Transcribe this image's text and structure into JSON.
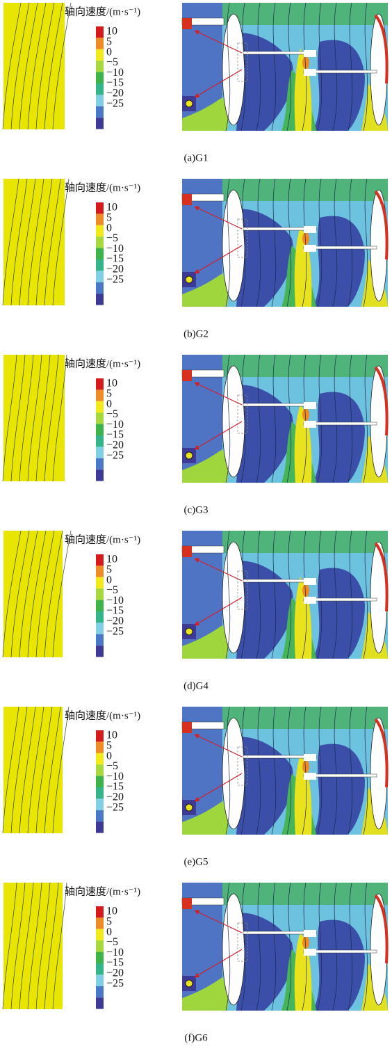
{
  "panels": [
    {
      "caption": "(a)G1",
      "colorbar_title": "轴向速度/(m·s⁻¹)",
      "colorbar_ticks": [
        "10",
        "5",
        "0",
        "−5",
        "−10",
        "−15",
        "−20",
        "−25"
      ]
    },
    {
      "caption": "(b)G2",
      "colorbar_title": "轴向速度/(m·s⁻¹)",
      "colorbar_ticks": [
        "10",
        "5",
        "0",
        "−5",
        "−10",
        "−15",
        "−20",
        "−25"
      ]
    },
    {
      "caption": "(c)G3",
      "colorbar_title": "轴向速度/(m·s⁻¹)",
      "colorbar_ticks": [
        "10",
        "5",
        "0",
        "−5",
        "−10",
        "−15",
        "−20",
        "−25"
      ]
    },
    {
      "caption": "(d)G4",
      "colorbar_title": "轴向速度/(m·s⁻¹)",
      "colorbar_ticks": [
        "10",
        "5",
        "0",
        "−5",
        "−10",
        "−15",
        "−20",
        "−25"
      ]
    },
    {
      "caption": "(e)G5",
      "colorbar_title": "轴向速度/(m·s⁻¹)",
      "colorbar_ticks": [
        "10",
        "5",
        "0",
        "−5",
        "−10",
        "−15",
        "−20",
        "−25"
      ]
    },
    {
      "caption": "(f)G6",
      "colorbar_title": "轴向速度/(m·s⁻¹)",
      "colorbar_ticks": [
        "10",
        "5",
        "0",
        "−5",
        "−10",
        "−15",
        "−20",
        "−25"
      ]
    }
  ]
}
